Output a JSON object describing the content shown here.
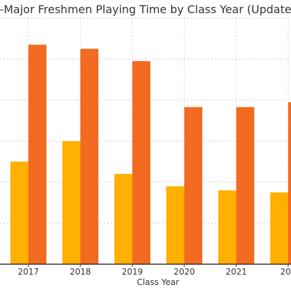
{
  "chart_data": {
    "type": "bar",
    "title": "h-Major Freshmen Playing Time by Class Year (Update",
    "xlabel": "Class Year",
    "ylabel": "",
    "categories": [
      "2017",
      "2018",
      "2019",
      "2020",
      "2021",
      "202"
    ],
    "series": [
      {
        "color": "#FFB000",
        "values": [
          2.5,
          3.0,
          2.2,
          1.9,
          1.8,
          1.75
        ]
      },
      {
        "color": "#F26B21",
        "values": [
          5.35,
          5.25,
          4.95,
          3.83,
          3.83,
          3.95
        ]
      }
    ],
    "ylim": [
      0,
      6
    ],
    "grid": true,
    "legend": "none"
  }
}
